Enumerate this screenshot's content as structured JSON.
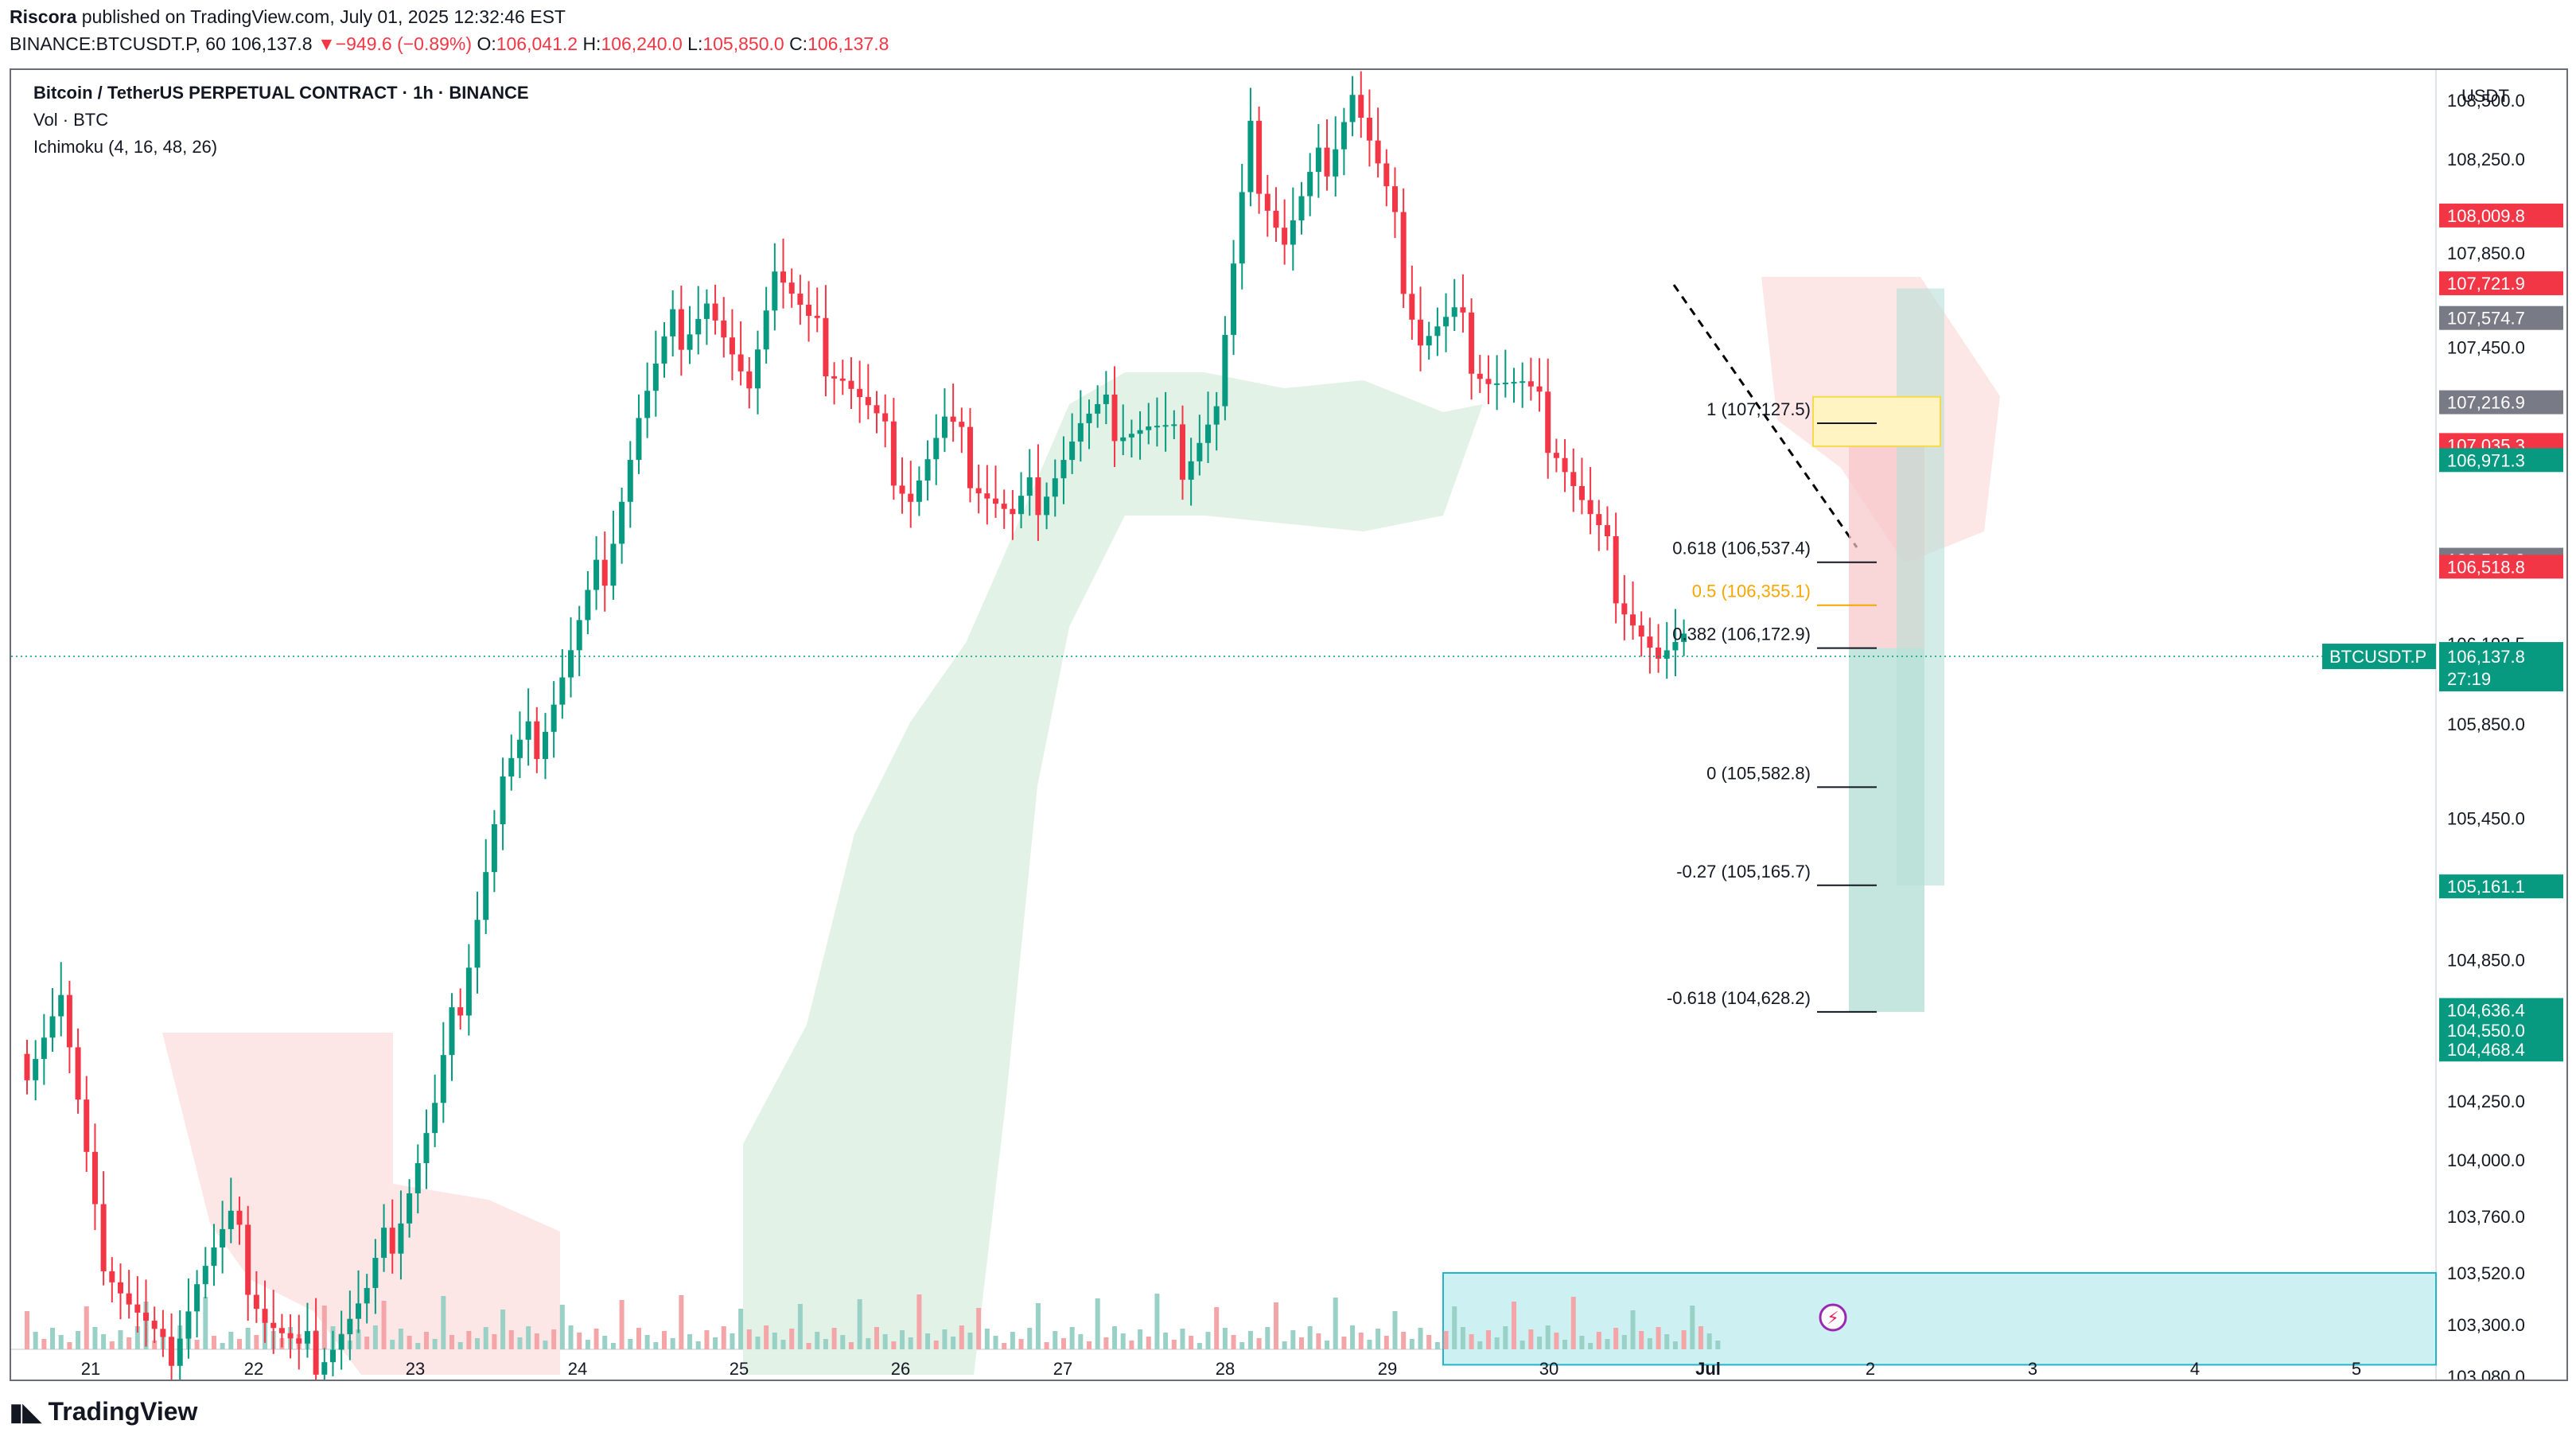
{
  "header": {
    "author": "Riscora",
    "published_text": "published on TradingView.com, July 01, 2025 12:32:46 EST",
    "symbol_interval": "BINANCE:BTCUSDT.P, 60",
    "last": "106,137.8",
    "change": "−949.6 (−0.89%)",
    "open_label": "O:",
    "open": "106,041.2",
    "high_label": "H:",
    "high": "106,240.0",
    "low_label": "L:",
    "low": "105,850.0",
    "close_label": "C:",
    "close": "106,137.8"
  },
  "legend": {
    "title": "Bitcoin / TetherUS PERPETUAL CONTRACT · 1h · BINANCE",
    "vol": "Vol · BTC",
    "ichimoku": "Ichimoku (4, 16, 48, 26)"
  },
  "footer": {
    "brand": "TradingView"
  },
  "colors": {
    "up": "#089981",
    "down": "#f23645",
    "fib": "#f7a600",
    "cloud_up": "#e0f1e4",
    "cloud_down": "#fde3e3",
    "box": "#cdf0f2",
    "box_border": "#22b5c8"
  },
  "chart_data": {
    "type": "candlestick",
    "currency": "USDT",
    "y_ticks": [
      108500,
      108250,
      107850,
      107450,
      107035,
      106548,
      106192,
      105850,
      105450,
      104850,
      104250,
      104000,
      103760,
      103520,
      103300,
      103080
    ],
    "y_tick_labels": [
      "108,500.0",
      "108,250.0",
      "107,850.0",
      "107,450.0",
      "107,035.3",
      "106,548.2",
      "106,192.5",
      "105,850.0",
      "105,450.0",
      "104,850.0",
      "104,250.0",
      "104,000.0",
      "103,760.0",
      "103,520.0",
      "103,300.0",
      "103,080.0"
    ],
    "x_tick_labels": [
      "21",
      "22",
      "23",
      "24",
      "25",
      "26",
      "27",
      "28",
      "29",
      "30",
      "Jul",
      "2",
      "3",
      "4",
      "5"
    ],
    "price_badges": [
      {
        "label": "108,009.8",
        "value": 108009.8,
        "color": "#f23645"
      },
      {
        "label": "107,721.9",
        "value": 107721.9,
        "color": "#f23645"
      },
      {
        "label": "107,574.7",
        "value": 107574.7,
        "color": "#787b86"
      },
      {
        "label": "107,216.9",
        "value": 107216.9,
        "color": "#787b86"
      },
      {
        "label": "107,035.3",
        "value": 107035.3,
        "color": "#f23645"
      },
      {
        "label": "106,971.3",
        "value": 106971.3,
        "color": "#089981"
      },
      {
        "label": "106,548.2",
        "value": 106548.2,
        "color": "#787b86"
      },
      {
        "label": "106,518.8",
        "value": 106518.8,
        "color": "#f23645"
      },
      {
        "label": "106,137.8",
        "value": 106137.8,
        "color": "#089981"
      },
      {
        "label": "105,161.1",
        "value": 105161.1,
        "color": "#089981"
      },
      {
        "label": "104,636.4",
        "value": 104636.4,
        "color": "#089981"
      },
      {
        "label": "104,550.0",
        "value": 104550.0,
        "color": "#089981"
      },
      {
        "label": "104,468.4",
        "value": 104468.4,
        "color": "#089981"
      }
    ],
    "current_price": {
      "symbol": "BTCUSDT.P",
      "value": 106137.8,
      "label": "106,137.8",
      "countdown": "27:19"
    },
    "fib_levels": [
      {
        "label": "1 (107,127.5)",
        "value": 107127.5
      },
      {
        "label": "0.618 (106,537.4)",
        "value": 106537.4
      },
      {
        "label": "0.5 (106,355.1)",
        "value": 106355.1
      },
      {
        "label": "0.382 (106,172.9)",
        "value": 106172.9
      },
      {
        "label": "0 (105,582.8)",
        "value": 105582.8
      },
      {
        "label": "-0.27 (105,165.7)",
        "value": 105165.7
      },
      {
        "label": "-0.618 (104,628.2)",
        "value": 104628.2
      }
    ],
    "close_path": [
      [
        0,
        104450
      ],
      [
        4,
        104700
      ],
      [
        8,
        103700
      ],
      [
        12,
        103400
      ],
      [
        16,
        103150
      ],
      [
        20,
        103500
      ],
      [
        24,
        103700
      ],
      [
        28,
        103350
      ],
      [
        32,
        103150
      ],
      [
        36,
        103250
      ],
      [
        40,
        103400
      ],
      [
        44,
        103800
      ],
      [
        48,
        104200
      ],
      [
        52,
        104900
      ],
      [
        56,
        105600
      ],
      [
        60,
        105800
      ],
      [
        64,
        106150
      ],
      [
        68,
        106550
      ],
      [
        72,
        107150
      ],
      [
        76,
        107500
      ],
      [
        80,
        107650
      ],
      [
        84,
        107250
      ],
      [
        88,
        107800
      ],
      [
        92,
        107500
      ],
      [
        96,
        107350
      ],
      [
        100,
        107100
      ],
      [
        104,
        106850
      ],
      [
        108,
        107100
      ],
      [
        112,
        106900
      ],
      [
        116,
        106700
      ],
      [
        120,
        106900
      ],
      [
        124,
        107100
      ],
      [
        128,
        107150
      ],
      [
        132,
        107100
      ],
      [
        136,
        107000
      ],
      [
        140,
        107200
      ],
      [
        144,
        108300
      ],
      [
        148,
        107900
      ],
      [
        152,
        108200
      ],
      [
        156,
        108550
      ],
      [
        160,
        108050
      ],
      [
        164,
        107500
      ],
      [
        168,
        107550
      ],
      [
        172,
        107350
      ],
      [
        176,
        107250
      ],
      [
        180,
        107050
      ],
      [
        184,
        106700
      ],
      [
        188,
        106400
      ],
      [
        192,
        106100
      ],
      [
        196,
        106130
      ]
    ],
    "volume_box": {
      "top": 103520,
      "bottom": 103130
    }
  }
}
